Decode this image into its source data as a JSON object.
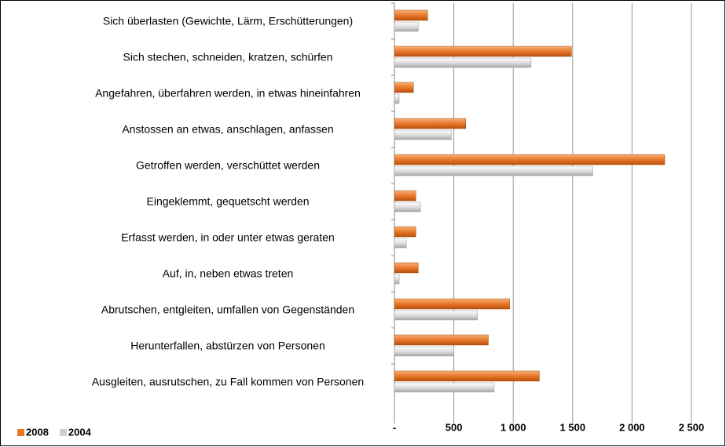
{
  "chart_data": {
    "type": "hbar",
    "categories": [
      "Sich überlasten (Gewichte, Lärm, Erschütterungen)",
      "Sich stechen, schneiden, kratzen, schürfen",
      "Angefahren, überfahren werden, in etwas hineinfahren",
      "Anstossen an etwas, anschlagen, anfassen",
      "Getroffen werden, verschüttet werden",
      "Eingeklemmt, gequetscht werden",
      "Erfasst werden, in oder unter etwas geraten",
      "Auf, in, neben etwas treten",
      "Abrutschen, entgleiten, umfallen von Gegenständen",
      "Herunterfallen, abstürzen von Personen",
      "Ausgleiten, ausrutschen, zu Fall kommen von Personen"
    ],
    "series": [
      {
        "name": "2008",
        "color": "#e8782a",
        "values": [
          280,
          1490,
          160,
          600,
          2275,
          180,
          180,
          200,
          970,
          790,
          1220
        ]
      },
      {
        "name": "2004",
        "color": "#cfcfcf",
        "values": [
          200,
          1150,
          40,
          480,
          1670,
          220,
          100,
          40,
          700,
          500,
          840
        ]
      }
    ],
    "xlim": [
      0,
      2500
    ],
    "xticks": [
      {
        "value": 0,
        "label": "-"
      },
      500,
      {
        "value": 1000,
        "label": "1 000"
      },
      {
        "value": 1500,
        "label": "1 500"
      },
      {
        "value": 2000,
        "label": "2 000"
      },
      {
        "value": 2500,
        "label": "2 500"
      }
    ],
    "grid": true,
    "legend": "bottom-left"
  }
}
